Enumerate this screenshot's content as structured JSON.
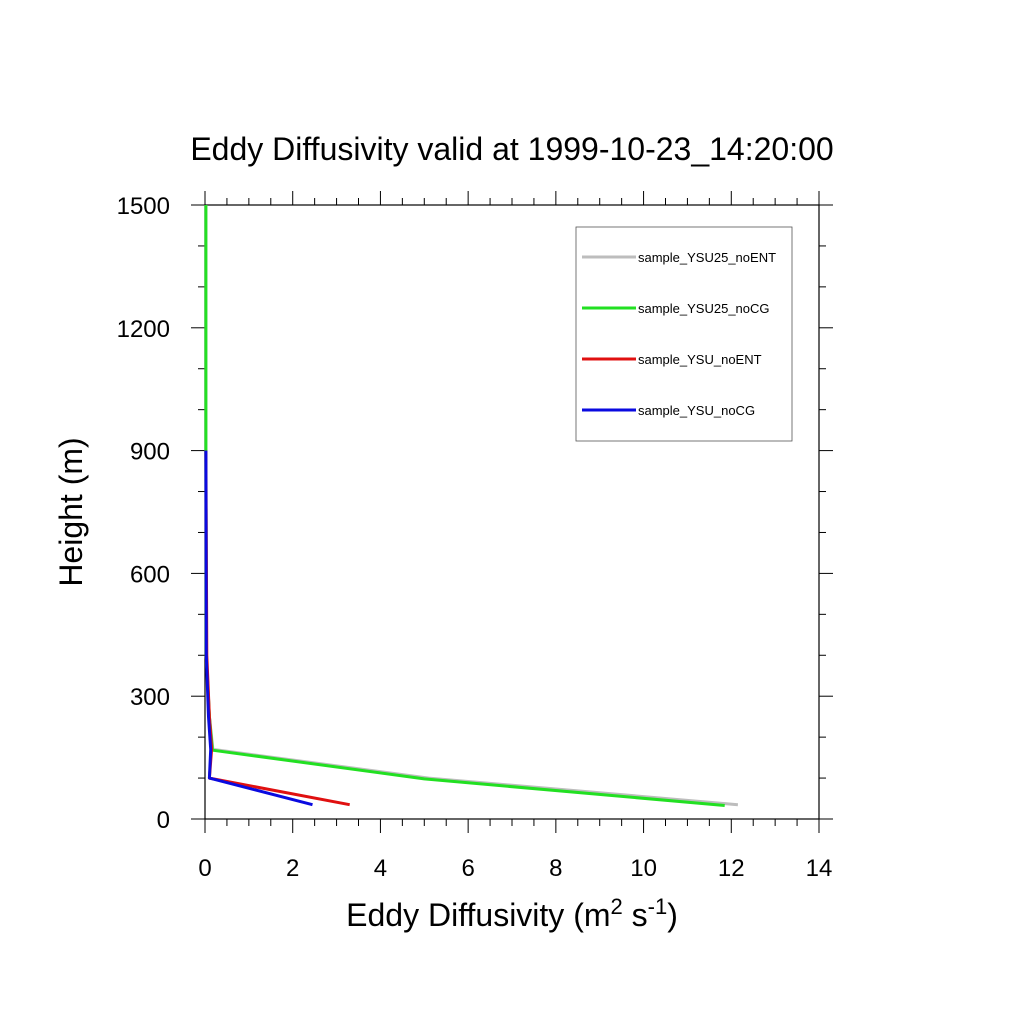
{
  "chart_data": {
    "type": "line",
    "title": "Eddy Diffusivity valid at 1999-10-23_14:20:00",
    "xlabel": {
      "base": "Eddy Diffusivity (m",
      "sup1": "2",
      "mid": " s",
      "sup2": "-1",
      "end": ")"
    },
    "ylabel": "Height (m)",
    "xlim": [
      0,
      14
    ],
    "ylim": [
      0,
      1500
    ],
    "xticks": [
      0,
      2,
      4,
      6,
      8,
      10,
      12,
      14
    ],
    "yticks": [
      0,
      300,
      600,
      900,
      1200,
      1500
    ],
    "xtick_labels": [
      "0",
      "2",
      "4",
      "6",
      "8",
      "10",
      "12",
      "14"
    ],
    "ytick_labels": [
      "0",
      "300",
      "600",
      "900",
      "1200",
      "1500"
    ],
    "legend_position": "top-right",
    "series": [
      {
        "name": "sample_YSU25_noENT",
        "color": "#bdbdbd",
        "x": [
          12.15,
          5.1,
          0.18,
          0.1,
          0.03,
          0.02,
          0.02
        ],
        "y": [
          35,
          100,
          170,
          250,
          400,
          900,
          1500
        ]
      },
      {
        "name": "sample_YSU25_noCG",
        "color": "#22e022",
        "x": [
          11.85,
          5.0,
          0.17,
          0.1,
          0.03,
          0.02,
          0.02
        ],
        "y": [
          33,
          98,
          168,
          250,
          400,
          900,
          1500
        ]
      },
      {
        "name": "sample_YSU_noENT",
        "color": "#e01010",
        "x": [
          3.3,
          0.1,
          0.15,
          0.1,
          0.04,
          0.02
        ],
        "y": [
          35,
          100,
          170,
          250,
          400,
          900
        ]
      },
      {
        "name": "sample_YSU_noCG",
        "color": "#0a0ae0",
        "x": [
          2.45,
          0.1,
          0.13,
          0.08,
          0.03,
          0.02
        ],
        "y": [
          35,
          100,
          170,
          250,
          400,
          900
        ]
      }
    ]
  }
}
